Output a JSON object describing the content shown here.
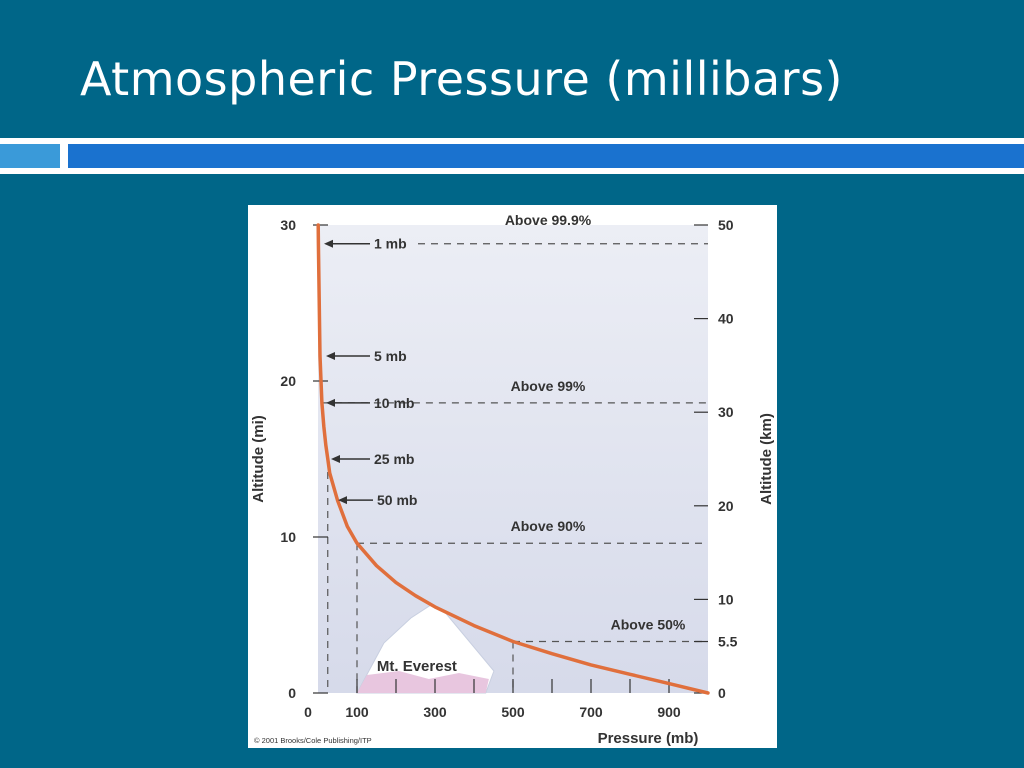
{
  "slide": {
    "title": "Atmospheric Pressure (millibars)"
  },
  "colors": {
    "background": "#006688",
    "rule_light": "#3a9ad9",
    "rule_dark": "#1a72cf",
    "curve": "#e06f3c",
    "mountain_base": "#e8c6df"
  },
  "chart_data": {
    "type": "line",
    "xlabel": "Pressure  (mb)",
    "ylabel_left": "Altitude (mi)",
    "ylabel_right": "Altitude (km)",
    "xlim": [
      0,
      1000
    ],
    "ylim_mi": [
      0,
      30
    ],
    "ylim_km": [
      0,
      50
    ],
    "x_ticks": [
      0,
      100,
      300,
      500,
      700,
      900
    ],
    "y_ticks_mi": [
      0,
      10,
      20,
      30
    ],
    "y_ticks_km": [
      "0",
      "5.5",
      "10",
      "20",
      "30",
      "40",
      "50"
    ],
    "series": [
      {
        "values_pressure_mb": [
          1000,
          900,
          800,
          700,
          600,
          500,
          400,
          300,
          250,
          200,
          150,
          100,
          75,
          50,
          30,
          25,
          20,
          15,
          10,
          5,
          1
        ],
        "values_altitude_km": [
          0,
          1,
          2,
          3,
          4.2,
          5.5,
          7.2,
          9.2,
          10.4,
          11.8,
          13.6,
          16,
          17.8,
          20.6,
          23.5,
          25,
          26.5,
          28.5,
          31,
          36,
          48
        ]
      }
    ],
    "pressure_labels": [
      {
        "label": "1 mb",
        "altitude_km": 48
      },
      {
        "label": "5 mb",
        "altitude_km": 36
      },
      {
        "label": "10 mb",
        "altitude_km": 31
      },
      {
        "label": "25 mb",
        "altitude_km": 25
      },
      {
        "label": "50 mb",
        "altitude_km": 20.6
      }
    ],
    "thresholds": [
      {
        "label": "Above 99.9%",
        "altitude_km": 48,
        "pressure_mb": 1
      },
      {
        "label": "Above 99%",
        "altitude_km": 31,
        "pressure_mb": 10
      },
      {
        "label": "Above 90%",
        "altitude_km": 16,
        "pressure_mb": 100
      },
      {
        "label": "Above 50%",
        "altitude_km": 5.5,
        "pressure_mb": 500
      }
    ],
    "annotation": "Mt. Everest",
    "credit": "© 2001 Brooks/Cole Publishing/ITP"
  }
}
